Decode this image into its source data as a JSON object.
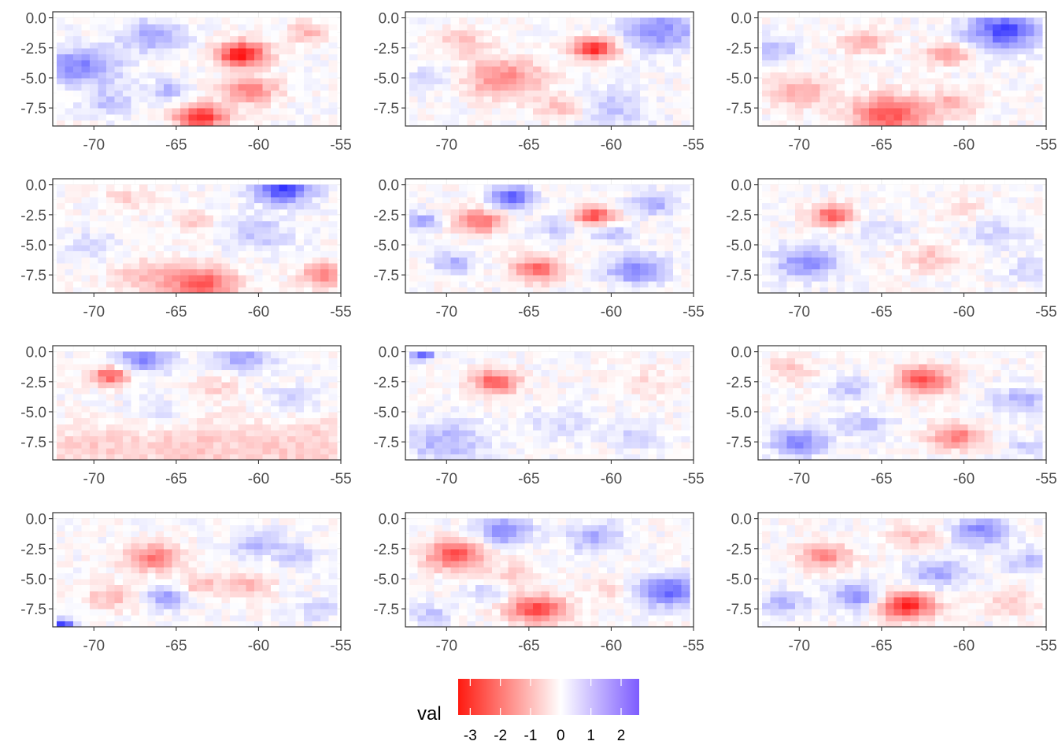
{
  "chart_data": {
    "type": "heatmap",
    "title": "",
    "layout": {
      "rows": 4,
      "cols": 3
    },
    "panel_count": 12,
    "x_ticks": [
      "-70",
      "-65",
      "-60",
      "-55"
    ],
    "x_tick_values": [
      -70,
      -65,
      -60,
      -55
    ],
    "y_ticks": [
      "0.0",
      "-2.5",
      "-5.0",
      "-7.5"
    ],
    "y_tick_values": [
      0.0,
      -2.5,
      -5.0,
      -7.5
    ],
    "xlim": [
      -72.5,
      -55
    ],
    "ylim": [
      -9.0,
      0.5
    ],
    "grid": true,
    "grid_x_range": [
      -72,
      -55.5
    ],
    "grid_y_range": [
      -8.75,
      0.0
    ],
    "grid_step": 0.5,
    "legend": {
      "title": "val",
      "position": "bottom",
      "ticks": [
        "-3",
        "-2",
        "-1",
        "0",
        "1",
        "2"
      ],
      "tick_values": [
        -3,
        -2,
        -1,
        0,
        1,
        2
      ],
      "range": [
        -3.4,
        2.6
      ],
      "low_color": "#ff0000",
      "mid_color": "#ffffff",
      "high_color": "#0000ff"
    },
    "panels": [
      {
        "blobs": [
          [
            -70.8,
            -4.0,
            -1.6,
            1.8
          ],
          [
            -61.0,
            -3.0,
            3.2,
            1.2
          ],
          [
            -63.5,
            -8.2,
            2.8,
            1.2
          ],
          [
            -66.5,
            -1.5,
            -1.2,
            1.5
          ],
          [
            -60.5,
            -6.0,
            1.6,
            1.3
          ],
          [
            -57.0,
            -1.2,
            1.0,
            1.0
          ],
          [
            -69.0,
            -7.0,
            -0.8,
            1.3
          ],
          [
            -65.5,
            -6.0,
            -0.9,
            1.0
          ]
        ]
      },
      {
        "blobs": [
          [
            -66.5,
            -5.0,
            1.7,
            1.8
          ],
          [
            -61.0,
            -2.5,
            3.0,
            1.0
          ],
          [
            -57.0,
            -1.0,
            -1.5,
            1.8
          ],
          [
            -60.0,
            -7.5,
            -0.7,
            2.0
          ],
          [
            -69.0,
            -2.0,
            0.8,
            1.2
          ],
          [
            -63.0,
            -7.5,
            1.0,
            1.2
          ],
          [
            -71.0,
            -5.0,
            -0.6,
            1.2
          ]
        ]
      },
      {
        "blobs": [
          [
            -57.5,
            -1.0,
            -2.4,
            1.7
          ],
          [
            -64.5,
            -8.0,
            2.3,
            1.8
          ],
          [
            -61.0,
            -3.0,
            1.6,
            1.0
          ],
          [
            -70.0,
            -6.0,
            1.0,
            1.6
          ],
          [
            -66.0,
            -2.0,
            1.0,
            1.2
          ],
          [
            -71.5,
            -2.5,
            -1.0,
            1.1
          ],
          [
            -60.5,
            -7.0,
            1.0,
            1.2
          ]
        ]
      },
      {
        "blobs": [
          [
            -58.5,
            -0.3,
            -2.5,
            1.4
          ],
          [
            -63.5,
            -8.2,
            2.3,
            1.6
          ],
          [
            -67.0,
            -7.5,
            0.8,
            1.6
          ],
          [
            -68.0,
            -1.0,
            0.6,
            1.1
          ],
          [
            -56.0,
            -7.5,
            1.6,
            1.2
          ],
          [
            -60.0,
            -4.0,
            -0.8,
            1.6
          ],
          [
            -70.0,
            -5.0,
            -0.6,
            1.3
          ],
          [
            -64.0,
            -3.0,
            0.6,
            1.0
          ]
        ]
      },
      {
        "blobs": [
          [
            -66.0,
            -1.0,
            -2.2,
            1.0
          ],
          [
            -68.0,
            -3.0,
            2.0,
            1.1
          ],
          [
            -61.0,
            -2.5,
            2.5,
            0.9
          ],
          [
            -64.5,
            -7.0,
            2.0,
            1.2
          ],
          [
            -58.5,
            -7.0,
            -1.8,
            1.3
          ],
          [
            -71.5,
            -3.0,
            -1.4,
            0.8
          ],
          [
            -69.5,
            -6.5,
            -1.0,
            1.0
          ],
          [
            -60.0,
            -4.0,
            -0.8,
            1.0
          ],
          [
            -57.5,
            -1.5,
            -1.2,
            1.0
          ],
          [
            -63.5,
            -3.5,
            -0.8,
            0.9
          ]
        ]
      },
      {
        "blobs": [
          [
            -68.0,
            -2.5,
            2.2,
            1.0
          ],
          [
            -69.5,
            -6.5,
            -1.5,
            1.5
          ],
          [
            -62.0,
            -6.0,
            0.7,
            1.5
          ],
          [
            -58.0,
            -4.0,
            -0.5,
            1.5
          ],
          [
            -60.0,
            -2.0,
            0.5,
            1.1
          ],
          [
            -56.0,
            -7.0,
            -0.6,
            1.2
          ],
          [
            -65.0,
            -4.0,
            -0.5,
            1.2
          ]
        ]
      },
      {
        "blobs": [
          [
            -69.0,
            -2.0,
            2.2,
            0.9
          ],
          [
            -67.0,
            -0.5,
            -1.6,
            1.3
          ],
          [
            -61.0,
            -0.5,
            -1.2,
            1.4
          ],
          [
            -64.0,
            -8.0,
            0.7,
            3.0
          ],
          [
            -57.0,
            -8.0,
            0.7,
            3.0
          ],
          [
            -70.5,
            -8.0,
            0.6,
            2.5
          ],
          [
            -66.0,
            -5.0,
            -0.5,
            1.5
          ],
          [
            -58.0,
            -4.0,
            -0.6,
            1.4
          ],
          [
            -62.5,
            -3.0,
            0.6,
            1.2
          ]
        ]
      },
      {
        "blobs": [
          [
            -67.0,
            -2.5,
            2.3,
            1.1
          ],
          [
            -71.5,
            -0.2,
            -2.0,
            0.6
          ],
          [
            -70.0,
            -7.5,
            -1.0,
            2.0
          ],
          [
            -58.0,
            -2.5,
            0.5,
            1.4
          ],
          [
            -63.0,
            -6.0,
            -0.5,
            1.6
          ],
          [
            -58.5,
            -7.0,
            -0.6,
            1.2
          ]
        ]
      },
      {
        "blobs": [
          [
            -62.5,
            -2.3,
            2.4,
            1.3
          ],
          [
            -60.5,
            -7.0,
            1.8,
            1.2
          ],
          [
            -70.0,
            -7.5,
            -1.6,
            1.3
          ],
          [
            -66.0,
            -6.0,
            -0.8,
            1.3
          ],
          [
            -56.5,
            -4.0,
            -1.0,
            1.3
          ],
          [
            -70.5,
            -1.5,
            0.7,
            1.2
          ],
          [
            -67.0,
            -3.0,
            -0.8,
            1.1
          ],
          [
            -56.0,
            -8.0,
            -0.8,
            0.9
          ]
        ]
      },
      {
        "blobs": [
          [
            -66.5,
            -3.2,
            1.8,
            1.3
          ],
          [
            -71.8,
            -8.7,
            -2.7,
            0.5
          ],
          [
            -69.0,
            -6.5,
            0.9,
            1.2
          ],
          [
            -65.5,
            -6.5,
            -1.5,
            1.0
          ],
          [
            -60.5,
            -5.5,
            0.9,
            1.1
          ],
          [
            -60.0,
            -2.0,
            -0.9,
            1.3
          ],
          [
            -57.5,
            -3.0,
            -0.7,
            1.1
          ],
          [
            -63.5,
            -5.5,
            1.0,
            1.0
          ],
          [
            -56.5,
            -7.5,
            -0.6,
            1.1
          ]
        ]
      },
      {
        "blobs": [
          [
            -69.5,
            -3.0,
            2.3,
            1.4
          ],
          [
            -64.5,
            -7.5,
            2.4,
            1.4
          ],
          [
            -56.5,
            -6.0,
            -2.0,
            1.5
          ],
          [
            -66.5,
            -1.0,
            -1.6,
            1.3
          ],
          [
            -61.0,
            -1.5,
            -1.2,
            1.3
          ],
          [
            -71.0,
            -8.0,
            -0.8,
            1.0
          ],
          [
            -66.0,
            -4.5,
            0.6,
            1.2
          ],
          [
            -60.0,
            -6.0,
            0.6,
            1.0
          ],
          [
            -67.5,
            -6.0,
            -0.6,
            1.0
          ]
        ]
      },
      {
        "blobs": [
          [
            -63.5,
            -7.2,
            3.0,
            1.3
          ],
          [
            -68.5,
            -3.0,
            1.7,
            1.2
          ],
          [
            -66.5,
            -6.5,
            -1.4,
            1.3
          ],
          [
            -59.0,
            -1.0,
            -1.5,
            1.3
          ],
          [
            -61.5,
            -4.5,
            -1.2,
            1.3
          ],
          [
            -71.0,
            -7.0,
            -0.9,
            1.2
          ],
          [
            -56.0,
            -3.5,
            -0.8,
            1.3
          ],
          [
            -63.0,
            -1.5,
            0.8,
            1.2
          ],
          [
            -57.0,
            -7.0,
            0.7,
            1.2
          ]
        ]
      }
    ]
  }
}
